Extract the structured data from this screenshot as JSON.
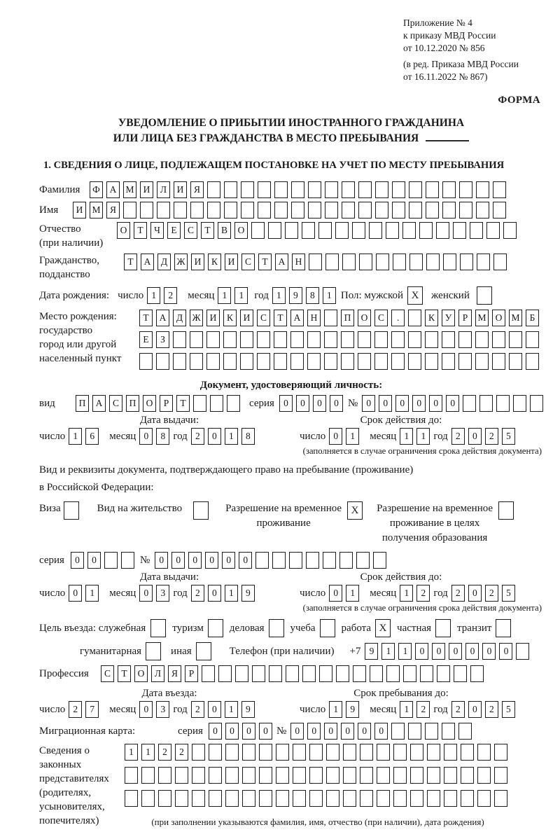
{
  "header": {
    "appendix": [
      "Приложение № 4",
      "к приказу МВД России",
      "от 10.12.2020 № 856"
    ],
    "edition": [
      "(в ред. Приказа МВД России",
      "от 16.11.2022 № 867)"
    ],
    "form_label": "ФОРМА"
  },
  "title": {
    "line1": "УВЕДОМЛЕНИЕ О ПРИБЫТИИ ИНОСТРАННОГО ГРАЖДАНИНА",
    "line2": "ИЛИ ЛИЦА БЕЗ ГРАЖДАНСТВА В МЕСТО ПРЕБЫВАНИЯ"
  },
  "section1_heading": "1. СВЕДЕНИЯ О ЛИЦЕ, ПОДЛЕЖАЩЕМ ПОСТАНОВКЕ НА УЧЕТ ПО МЕСТУ ПРЕБЫВАНИЯ",
  "date_labels": {
    "day": "число",
    "month": "месяц",
    "year": "год"
  },
  "captions": {
    "validity_note": "(заполняется в случае ограничения срока действия документа)",
    "representatives_note": "(при заполнении указываются фамилия, имя, отчество (при наличии), дата рождения)"
  },
  "s1": {
    "surname": {
      "label": "Фамилия",
      "value": "ФАМИЛИЯ",
      "length": 25
    },
    "name": {
      "label": "Имя",
      "value": "ИМЯ",
      "length": 26
    },
    "patronymic": {
      "label1": "Отчество",
      "label2": "(при наличии)",
      "value": "ОТЧЕСТВО",
      "length": 24
    },
    "citizenship": {
      "label1": "Гражданство,",
      "label2": "подданство",
      "value": "ТАДЖИКИСТАН",
      "length": 23
    },
    "birth_date": {
      "label": "Дата рождения:",
      "day": {
        "value": "12",
        "length": 2
      },
      "month": {
        "value": "11",
        "length": 2
      },
      "year": {
        "value": "1981",
        "length": 4
      }
    },
    "sex": {
      "label": "Пол: мужской",
      "male": "X",
      "female_label": "женский",
      "female": ""
    },
    "birth_place": {
      "labels": [
        "Место рождения:",
        "государство",
        "город или другой",
        "населенный пункт"
      ],
      "row1": {
        "value": "ТАДЖИКИСТАН ПОС. КУРМОМБ",
        "length": 24
      },
      "row2": {
        "value": "ЕЗ",
        "length": 24
      },
      "row3": {
        "value": "",
        "length": 24
      }
    },
    "identity_doc": {
      "heading": "Документ, удостоверяющий личность:",
      "type_label": "вид",
      "type": {
        "value": "ПАСПОРТ",
        "length": 10
      },
      "series_label": "серия",
      "series": {
        "value": "0000",
        "length": 4
      },
      "number_label": "№",
      "number": {
        "value": "000000",
        "length": 11
      },
      "issue": {
        "heading": "Дата выдачи:",
        "day": {
          "value": "16",
          "length": 2
        },
        "month": {
          "value": "08",
          "length": 2
        },
        "year": {
          "value": "2018",
          "length": 4
        }
      },
      "expiry": {
        "heading": "Срок действия до:",
        "day": {
          "value": "01",
          "length": 2
        },
        "month": {
          "value": "11",
          "length": 2
        },
        "year": {
          "value": "2025",
          "length": 4
        }
      }
    },
    "residence_doc": {
      "intro1": "Вид и реквизиты документа, подтверждающего право на пребывание (проживание)",
      "intro2": "в Российской Федерации:",
      "visa_label": "Виза",
      "visa": "",
      "residence_permit_label": "Вид на жительство",
      "residence_permit": "",
      "rvp_lines": [
        "Разрешение на временное",
        "проживание"
      ],
      "rvp": "X",
      "rvp_edu_lines": [
        "Разрешение на временное",
        "проживание в целях",
        "получения образования"
      ],
      "rvp_edu": "",
      "series_label": "серия",
      "series": {
        "value": "00",
        "length": 4
      },
      "number_label": "№",
      "number": {
        "value": "000000",
        "length": 14
      },
      "issue": {
        "heading": "Дата выдачи:",
        "day": {
          "value": "01",
          "length": 2
        },
        "month": {
          "value": "03",
          "length": 2
        },
        "year": {
          "value": "2019",
          "length": 4
        }
      },
      "expiry": {
        "heading": "Срок действия до:",
        "day": {
          "value": "01",
          "length": 2
        },
        "month": {
          "value": "12",
          "length": 2
        },
        "year": {
          "value": "2025",
          "length": 4
        }
      }
    },
    "purpose": {
      "label": "Цель въезда: служебная",
      "official": "",
      "tourism_label": "туризм",
      "tourism": "",
      "business_label": "деловая",
      "business": "",
      "study_label": "учеба",
      "study": "",
      "work_label": "работа",
      "work": "X",
      "private_label": "частная",
      "private": "",
      "transit_label": "транзит",
      "transit": "",
      "humanitarian_label": "гуманитарная",
      "humanitarian": "",
      "other_label": "иная",
      "other": ""
    },
    "phone": {
      "label": "Телефон (при наличии)",
      "prefix": "+7",
      "value": "911000000",
      "length": 10
    },
    "profession": {
      "label": "Профессия",
      "value": "СТОЛЯР",
      "length": 23
    },
    "entry": {
      "issue": {
        "heading": "Дата въезда:",
        "day": {
          "value": "27",
          "length": 2
        },
        "month": {
          "value": "03",
          "length": 2
        },
        "year": {
          "value": "2019",
          "length": 4
        }
      },
      "expiry": {
        "heading": "Срок пребывания до:",
        "day": {
          "value": "19",
          "length": 2
        },
        "month": {
          "value": "12",
          "length": 2
        },
        "year": {
          "value": "2025",
          "length": 4
        }
      }
    },
    "migration_card": {
      "label": "Миграционная карта:",
      "series_label": "серия",
      "series": {
        "value": "0000",
        "length": 4
      },
      "number_label": "№",
      "number": {
        "value": "000000",
        "length": 11
      }
    },
    "representatives": {
      "labels": [
        "Сведения о",
        "законных",
        "представителях",
        "(родителях,",
        "усыновителях,",
        "попечителях)"
      ],
      "row1": {
        "value": "1122",
        "length": 23
      },
      "row2": {
        "value": "",
        "length": 23
      },
      "row3": {
        "value": "",
        "length": 23
      }
    }
  }
}
